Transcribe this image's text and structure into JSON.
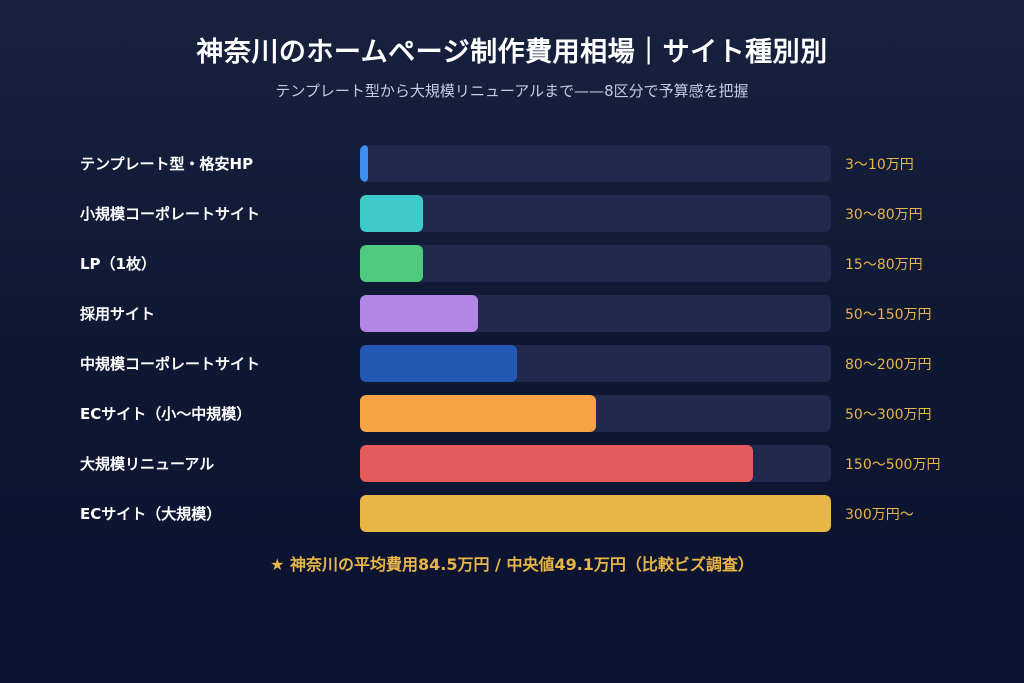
{
  "chart_data": {
    "type": "bar",
    "orientation": "horizontal",
    "title": "神奈川のホームページ制作費用相場｜サイト種別別",
    "subtitle": "テンプレート型から大規模リニューアルまで——8区分で予算感を把握",
    "units": "万円",
    "categories": [
      "テンプレート型・格安HP",
      "小規模コーポレートサイト",
      "LP（1枚）",
      "採用サイト",
      "中規模コーポレートサイト",
      "ECサイト（小〜中規模）",
      "大規模リニューアル",
      "ECサイト（大規模）"
    ],
    "value_labels": [
      "3〜10万円",
      "30〜80万円",
      "15〜80万円",
      "50〜150万円",
      "80〜200万円",
      "50〜300万円",
      "150〜500万円",
      "300万円〜"
    ],
    "values": [
      10,
      80,
      80,
      150,
      200,
      300,
      500,
      600
    ],
    "xlim": [
      0,
      600
    ],
    "colors": [
      "#3d8ff0",
      "#3dcac8",
      "#4fcb80",
      "#b385e6",
      "#2358b5",
      "#f5a345",
      "#e35b5b",
      "#e8b547"
    ],
    "track_color": "#1f2a4c",
    "grid": false,
    "legend": "none",
    "footnote": "★ 神奈川の平均費用84.5万円 / 中央値49.1万円（比較ビズ調査）"
  }
}
